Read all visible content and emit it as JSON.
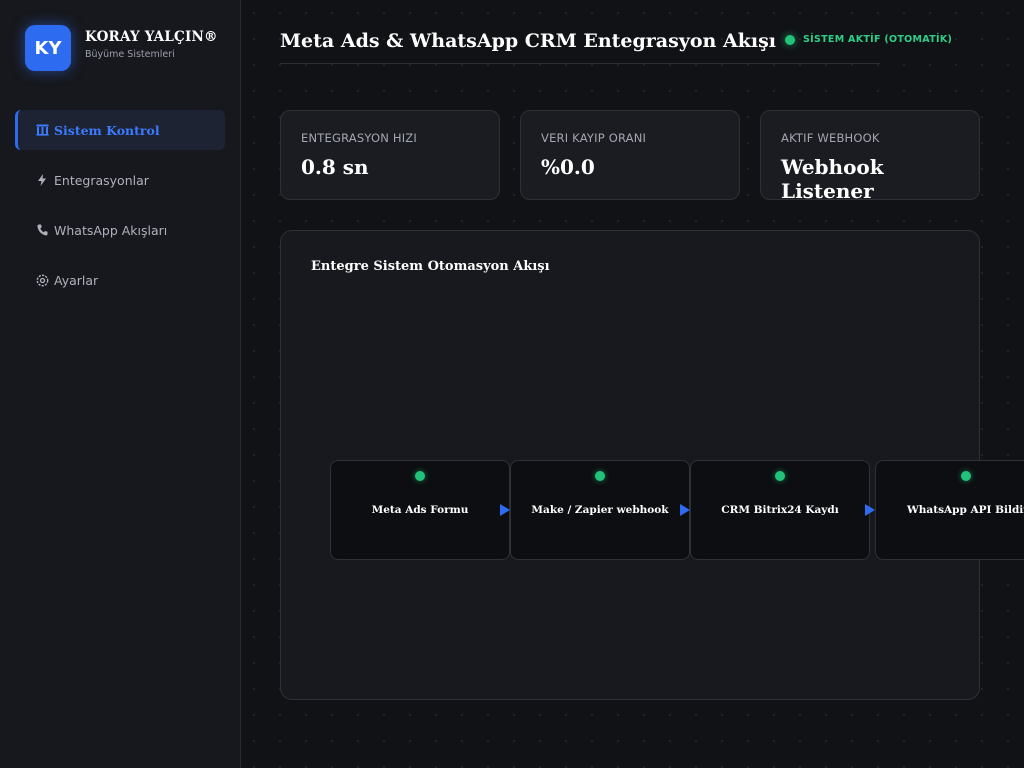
{
  "brand": {
    "logo": "KY",
    "name": "KORAY YALÇIN®",
    "subtitle": "Büyüme Sistemleri"
  },
  "sidebar": {
    "items": [
      {
        "label": "Sistem Kontrol",
        "icon": "building-icon",
        "active": true
      },
      {
        "label": "Entegrasyonlar",
        "icon": "lightning-icon",
        "active": false
      },
      {
        "label": "WhatsApp Akışları",
        "icon": "phone-icon",
        "active": false
      },
      {
        "label": "Ayarlar",
        "icon": "gear-icon",
        "active": false
      }
    ]
  },
  "header": {
    "title": "Meta Ads & WhatsApp CRM Entegrasyon Akışı",
    "status": "SİSTEM AKTİF (OTOMATİK)"
  },
  "stats": [
    {
      "label": "ENTEGRASYON HIZI",
      "value": "0.8 sn"
    },
    {
      "label": "VERI KAYIP ORANI",
      "value": "%0.0"
    },
    {
      "label": "AKTIF WEBHOOK",
      "value": "Webhook Listener"
    }
  ],
  "flow": {
    "title": "Entegre Sistem Otomasyon Akışı",
    "nodes": [
      {
        "label": "Meta Ads Formu"
      },
      {
        "label": "Make / Zapier webhook"
      },
      {
        "label": "CRM Bitrix24 Kaydı"
      },
      {
        "label": "WhatsApp API Bildirimi"
      }
    ]
  },
  "colors": {
    "accent": "#2d6bf0",
    "status_green": "#22c27a",
    "background": "#111216",
    "sidebar": "#17181d"
  }
}
